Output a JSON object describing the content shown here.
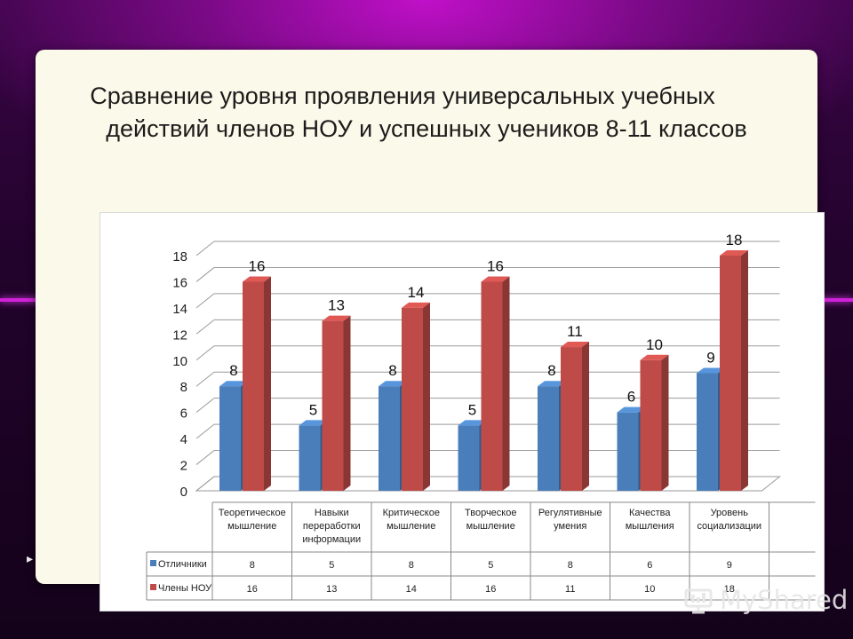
{
  "slide": {
    "title_line1": "Сравнение уровня проявления универсальных учебных",
    "title_line2": "действий  членов НОУ и успешных учеников 8-11 классов"
  },
  "watermark": {
    "text": "MyShared"
  },
  "colors": {
    "series1": "#4a7ebb",
    "series2": "#be4b48",
    "accent": "#c010c8"
  },
  "chart_data": {
    "type": "bar",
    "title": "Сравнение уровня проявления универсальных учебных действий  членов НОУ и успешных учеников 8-11 классов",
    "categories": [
      "Теоретическое мышление",
      "Навыки переработки информации",
      "Критическое мышление",
      "Творческое мышление",
      "Регулятивные умения",
      "Качества мышления",
      "Уровень социализации"
    ],
    "category_lines": [
      [
        "Теоретическое",
        "мышление"
      ],
      [
        "Навыки",
        "переработки",
        "информации"
      ],
      [
        "Критическое",
        "мышление"
      ],
      [
        "Творческое",
        "мышление"
      ],
      [
        "Регулятивные",
        "умения"
      ],
      [
        "Качества",
        "мышления"
      ],
      [
        "Уровень",
        "социализации"
      ]
    ],
    "series": [
      {
        "name": "Отличники",
        "values": [
          8,
          5,
          8,
          5,
          8,
          6,
          9
        ]
      },
      {
        "name": "Члены НОУ",
        "values": [
          16,
          13,
          14,
          16,
          11,
          10,
          18
        ]
      }
    ],
    "ylim": [
      0,
      18
    ],
    "yticks": [
      0,
      2,
      4,
      6,
      8,
      10,
      12,
      14,
      16,
      18
    ],
    "grid": true,
    "data_table": true,
    "style": "3d-clustered-column"
  }
}
